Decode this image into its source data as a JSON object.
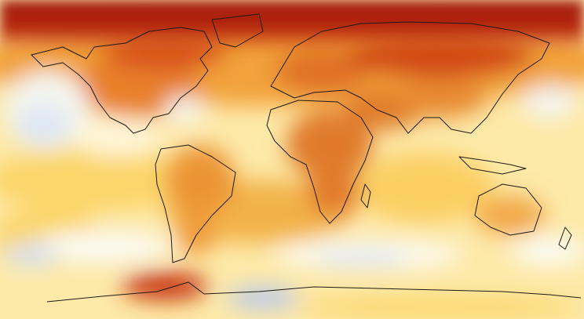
{
  "map": {
    "projection": "equirectangular",
    "lon_range": [
      -180,
      180
    ],
    "lat_range": [
      -90,
      90
    ],
    "colors": {
      "base": "#fde9a8",
      "deep_red": "#a01a08",
      "red": "#c8340f",
      "orange": "#e06a1e",
      "light_orange": "#f2a23a",
      "yellow": "#fbd66a",
      "pale_yellow": "#fff3c4",
      "white": "#fbfbf6",
      "pale_blue": "#dde6f6",
      "blue": "#b7c8ee",
      "coast": "#1e1a14"
    }
  }
}
